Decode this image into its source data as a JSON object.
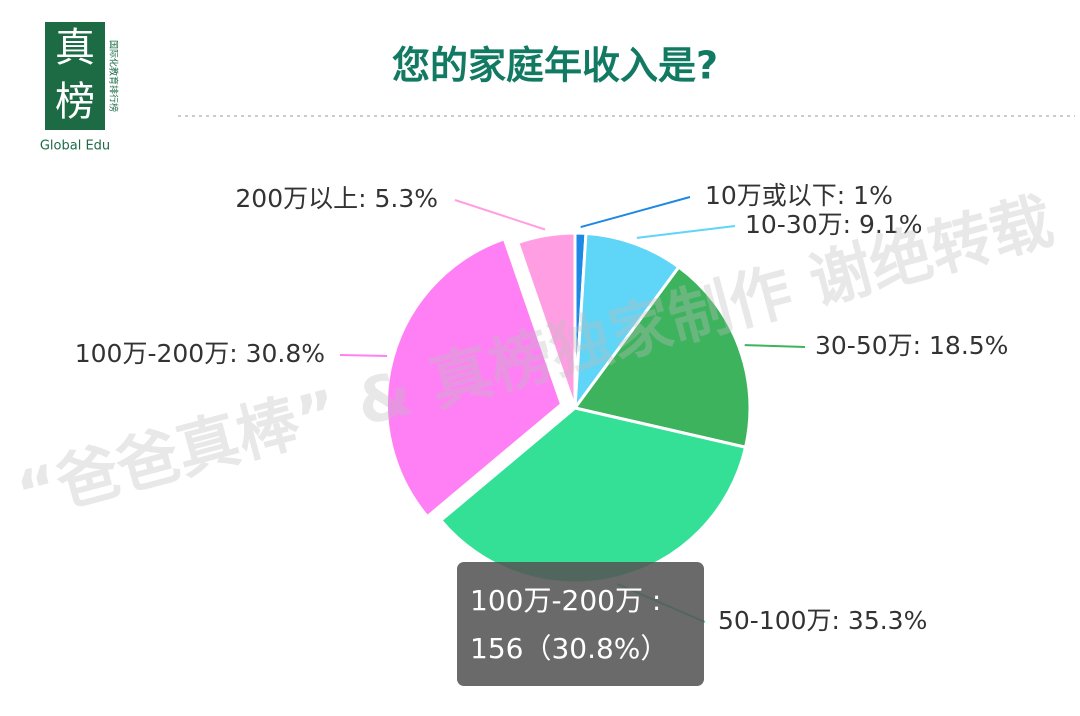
{
  "logo": {
    "mark": [
      "真",
      "榜"
    ],
    "tagline": "国际化教育排行榜",
    "brand": "Global Edu"
  },
  "watermark": "“爸爸真棒” & 真榜独家制作  谢绝转载",
  "chart_data": {
    "type": "pie",
    "title": "您的家庭年收入是?",
    "values": [
      1,
      9.1,
      18.5,
      35.3,
      30.8,
      5.3
    ],
    "value_labels": [
      "10万或以下: 1%",
      "10-30万: 9.1%",
      "30-50万: 18.5%",
      "50-100万: 35.3%",
      "100万-200万: 30.8%",
      "200万以上: 5.3%"
    ],
    "colors": [
      "#1e88e5",
      "#5fd5f8",
      "#3cb35c",
      "#33e096",
      "#ff80f5",
      "#ff9ee3"
    ],
    "tooltip": [
      "100万-200万 :",
      "156（30.8%）"
    ]
  }
}
